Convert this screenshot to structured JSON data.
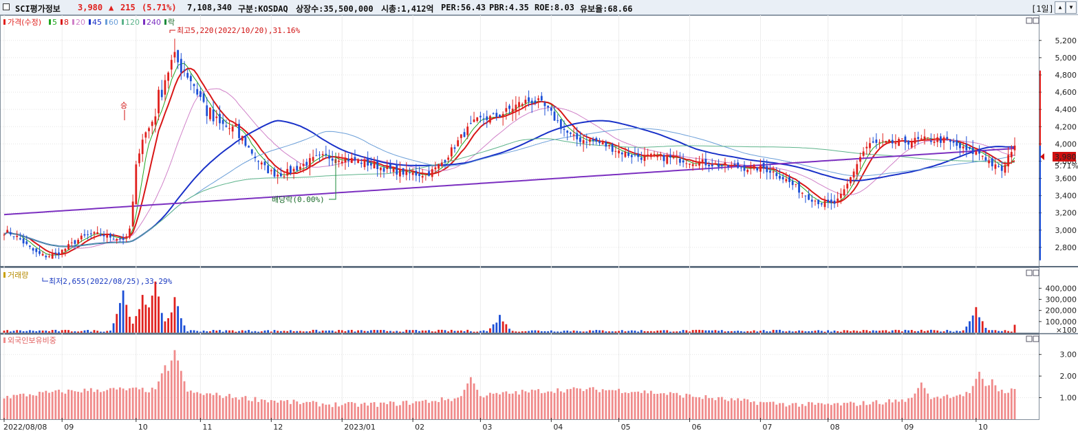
{
  "header": {
    "name": "SCI평가정보",
    "price": "3,980",
    "change_arrow": "▲",
    "change": "215",
    "change_pct": "(5.71%)",
    "volume": "7,108,340",
    "market": "구분:KOSDAQ",
    "shares": "상장수:35,500,000",
    "mcap": "시총:1,412억",
    "per": "PER:56.43",
    "pbr": "PBR:4.35",
    "roe": "ROE:8.03",
    "float": "유보율:68.66",
    "period": "[1일]",
    "up_btn": "▲",
    "down_btn": "▼",
    "colors": {
      "up": "#e0201d",
      "down": "#1c4fd6"
    }
  },
  "legend": {
    "price": "가격(수정)",
    "ma": [
      {
        "label": "5",
        "color": "#1fa51f"
      },
      {
        "label": "8",
        "color": "#d81616"
      },
      {
        "label": "20",
        "color": "#d080c8"
      },
      {
        "label": "45",
        "color": "#1830c8"
      },
      {
        "label": "60",
        "color": "#6a9ed8"
      },
      {
        "label": "120",
        "color": "#5cb38a"
      },
      {
        "label": "240",
        "color": "#7b2fc0"
      }
    ],
    "fall": "락",
    "volume": "거래량",
    "foreign": "외국인보유비중"
  },
  "annotations": {
    "high": "최고5,220(2022/10/20),31.16%",
    "low": "최저2,655(2022/08/25),33.29%",
    "dividend": "배당락(0.00%)",
    "rights": "승"
  },
  "price_tag": {
    "value": "3,980",
    "pct": "5.71%"
  },
  "chart_data": [
    {
      "type": "candlestick",
      "title": "가격(수정)",
      "x_start": "2022/08/08",
      "x_labels": [
        "2022/08/08",
        "09",
        "10",
        "11",
        "12",
        "2023/01",
        "02",
        "03",
        "04",
        "05",
        "06",
        "07",
        "08",
        "09",
        "10"
      ],
      "yticks": [
        "5,200",
        "5,000",
        "4,800",
        "4,600",
        "4,400",
        "4,200",
        "4,000",
        "3,800",
        "3,600",
        "3,400",
        "3,200",
        "3,000",
        "2,800"
      ],
      "ylim": [
        2600,
        5350
      ],
      "last_close": 3980,
      "high": {
        "value": 5220,
        "date": "2022/10/20"
      },
      "low": {
        "value": 2655,
        "date": "2022/08/25"
      },
      "anchors": [
        {
          "date": "2022/08/08",
          "price": 2980
        },
        {
          "date": "2022/08/25",
          "price": 2700
        },
        {
          "date": "2022/09/15",
          "price": 2950
        },
        {
          "date": "2022/09/29",
          "price": 2900
        },
        {
          "date": "2022/10/06",
          "price": 4100
        },
        {
          "date": "2022/10/20",
          "price": 4950
        },
        {
          "date": "2022/11/10",
          "price": 4200
        },
        {
          "date": "2022/12/05",
          "price": 3650
        },
        {
          "date": "2022/12/26",
          "price": 3850
        },
        {
          "date": "2023/02/06",
          "price": 3650
        },
        {
          "date": "2023/03/06",
          "price": 4300
        },
        {
          "date": "2023/03/24",
          "price": 4500
        },
        {
          "date": "2023/04/14",
          "price": 4050
        },
        {
          "date": "2023/05/12",
          "price": 3850
        },
        {
          "date": "2023/06/30",
          "price": 3720
        },
        {
          "date": "2023/08/02",
          "price": 3300
        },
        {
          "date": "2023/08/21",
          "price": 4000
        },
        {
          "date": "2023/09/18",
          "price": 4050
        },
        {
          "date": "2023/10/04",
          "price": 3900
        },
        {
          "date": "2023/10/16",
          "price": 3700
        },
        {
          "date": "2023/10/20",
          "price": 3980
        }
      ],
      "moving_averages": [
        "5",
        "8",
        "20",
        "45",
        "60",
        "120",
        "240"
      ]
    },
    {
      "type": "bar",
      "title": "거래량",
      "yticks": [
        "400,000",
        "300,000",
        "200,000",
        "100,000"
      ],
      "unit": "×100",
      "ylim": [
        0,
        520000
      ],
      "peaks": [
        {
          "date": "2022/09/28",
          "value": 380000
        },
        {
          "date": "2022/10/06",
          "value": 340000
        },
        {
          "date": "2022/10/12",
          "value": 460000
        },
        {
          "date": "2022/10/20",
          "value": 320000
        },
        {
          "date": "2023/03/10",
          "value": 160000
        },
        {
          "date": "2023/10/04",
          "value": 230000
        }
      ]
    },
    {
      "type": "bar",
      "title": "외국인보유비중",
      "yticks": [
        "3.00",
        "2.00",
        "1.00"
      ],
      "ylim": [
        0,
        3.5
      ],
      "peaks": [
        {
          "date": "2022/10/17",
          "value": 2.5
        },
        {
          "date": "2022/10/20",
          "value": 3.2
        },
        {
          "date": "2023/02/27",
          "value": 1.95
        },
        {
          "date": "2023/09/11",
          "value": 1.7
        },
        {
          "date": "2023/10/05",
          "value": 2.2
        },
        {
          "date": "2023/10/11",
          "value": 1.85
        }
      ]
    }
  ]
}
